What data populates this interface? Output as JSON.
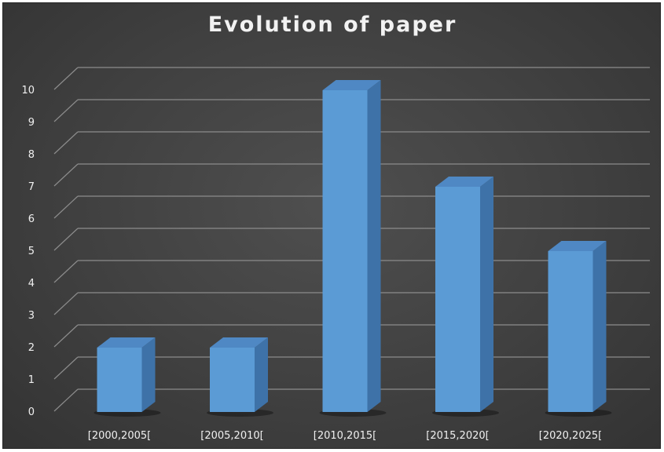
{
  "chart_data": {
    "type": "bar",
    "title": "Evolution of paper",
    "categories": [
      "[2000,2005[",
      "[2005,2010[",
      "[2010,2015[",
      "[2015,2020[",
      "[2020,2025["
    ],
    "values": [
      2,
      2,
      10,
      7,
      5
    ],
    "ylim": [
      0,
      10
    ],
    "yticks": [
      0,
      1,
      2,
      3,
      4,
      5,
      6,
      7,
      8,
      9,
      10
    ],
    "grid": true,
    "style": "3d-column",
    "colors": {
      "bar_front": "#5b9bd5",
      "bar_side": "#3e72a8",
      "bar_top": "#4f88c4",
      "grid": "#8c8c8c",
      "text": "#f0f0f0"
    }
  }
}
